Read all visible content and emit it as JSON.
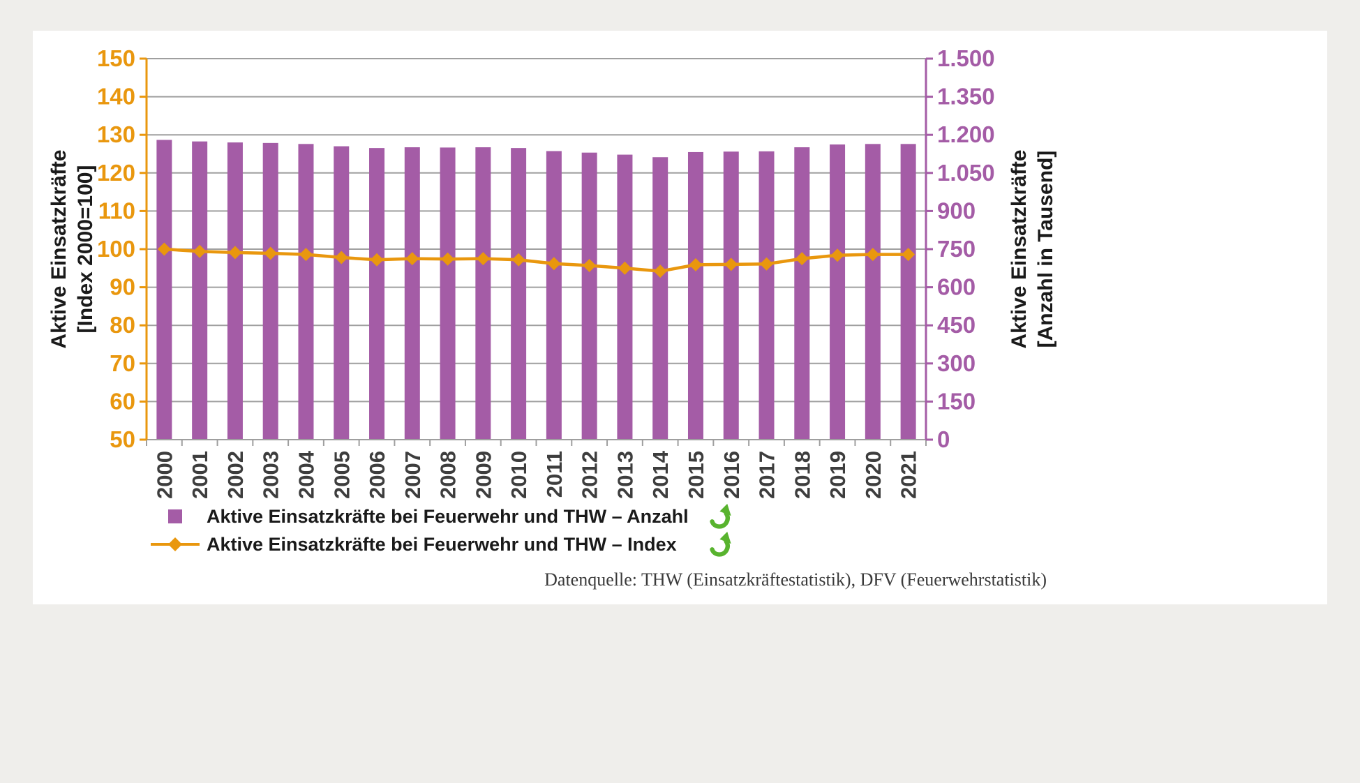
{
  "page": {
    "background_color": "#efeeeb",
    "card_color": "#ffffff"
  },
  "chart_data": {
    "type": "combo",
    "categories": [
      "2000",
      "2001",
      "2002",
      "2003",
      "2004",
      "2005",
      "2006",
      "2007",
      "2008",
      "2009",
      "2010",
      "2011",
      "2012",
      "2013",
      "2014",
      "2015",
      "2016",
      "2017",
      "2018",
      "2019",
      "2020",
      "2021"
    ],
    "series": [
      {
        "name": "Aktive Einsatzkräfte bei Feuerwehr und THW – Anzahl",
        "type": "bar",
        "axis": "right",
        "unit": "Anzahl in Tausend",
        "color": "#a45ca6",
        "values": [
          1180,
          1174,
          1170,
          1168,
          1164,
          1155,
          1148,
          1151,
          1150,
          1151,
          1148,
          1136,
          1130,
          1122,
          1112,
          1132,
          1134,
          1135,
          1151,
          1162,
          1164,
          1164
        ]
      },
      {
        "name": "Aktive Einsatzkräfte bei Feuerwehr und THW – Index",
        "type": "line",
        "axis": "left",
        "unit": "Index 2000=100",
        "color": "#e9970e",
        "marker": "diamond",
        "values": [
          100,
          99.4,
          99.1,
          98.9,
          98.6,
          97.8,
          97.2,
          97.5,
          97.4,
          97.5,
          97.2,
          96.2,
          95.7,
          95.0,
          94.2,
          95.9,
          96.0,
          96.1,
          97.5,
          98.4,
          98.6,
          98.6
        ]
      }
    ],
    "left_axis": {
      "title_line1": "Aktive Einsatzkräfte",
      "title_line2": "[Index 2000=100]",
      "min": 50,
      "max": 150,
      "ticks": [
        50,
        60,
        70,
        80,
        90,
        100,
        110,
        120,
        130,
        140,
        150
      ],
      "color": "#e9970e"
    },
    "right_axis": {
      "title_line1": "Aktive Einsatzkräfte",
      "title_line2": "[Anzahl in Tausend]",
      "min": 0,
      "max": 1500,
      "ticks": [
        0,
        150,
        300,
        450,
        600,
        750,
        900,
        1050,
        1200,
        1350,
        1500
      ],
      "tick_labels": [
        "0",
        "150",
        "300",
        "450",
        "600",
        "750",
        "900",
        "1.050",
        "1.200",
        "1.350",
        "1.500"
      ],
      "color": "#a45ca6"
    },
    "grid": true,
    "grid_color": "#9f9f9f",
    "x_label_color": "#3d3d3d",
    "legend_position": "bottom-left"
  },
  "legend": {
    "items": [
      {
        "label": "Aktive Einsatzkräfte bei Feuerwehr und THW – Anzahl",
        "marker": "square",
        "color": "#a45ca6",
        "trend_icon": "up-curved-arrow"
      },
      {
        "label": "Aktive Einsatzkräfte bei Feuerwehr und THW – Index",
        "marker": "line-diamond",
        "color": "#e9970e",
        "trend_icon": "up-curved-arrow"
      }
    ],
    "trend_icon_color": "#58b32e"
  },
  "source": {
    "text": "Datenquelle: THW (Einsatzkräftestatistik), DFV (Feuerwehrstatistik)"
  }
}
